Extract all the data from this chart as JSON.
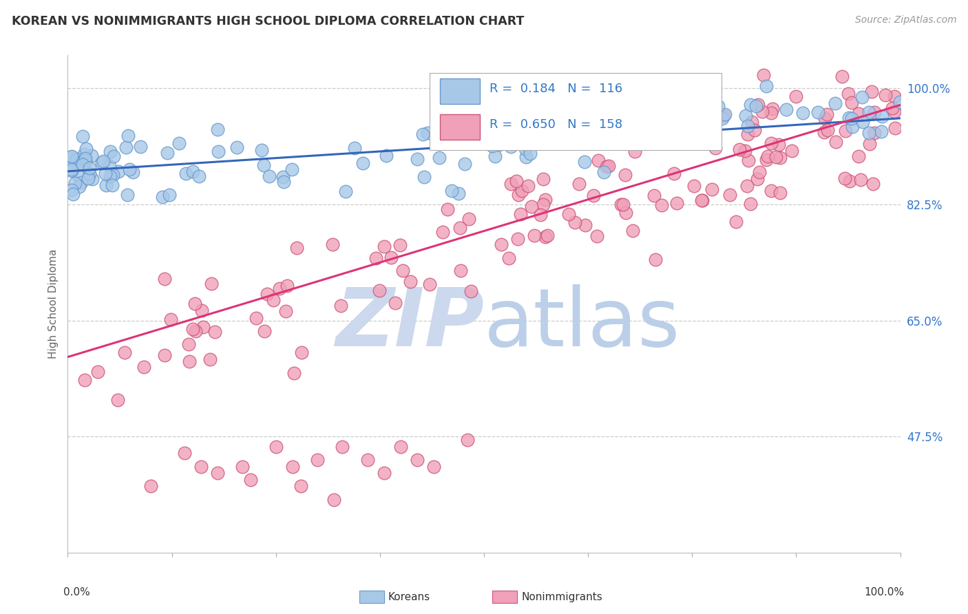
{
  "title": "KOREAN VS NONIMMIGRANTS HIGH SCHOOL DIPLOMA CORRELATION CHART",
  "source": "Source: ZipAtlas.com",
  "ylabel": "High School Diploma",
  "ytick_labels": [
    "100.0%",
    "82.5%",
    "65.0%",
    "47.5%"
  ],
  "ytick_values": [
    1.0,
    0.825,
    0.65,
    0.475
  ],
  "background_color": "#ffffff",
  "grid_color": "#cccccc",
  "title_color": "#333333",
  "axis_label_color": "#666666",
  "right_tick_color": "#3377cc",
  "watermark_zip_color": "#ccd8ed",
  "watermark_atlas_color": "#bccfe8",
  "korean_color": "#a8c8e8",
  "korean_edge_color": "#6699cc",
  "nonimmigrant_color": "#f0a0b8",
  "nonimmigrant_edge_color": "#cc5577",
  "korean_line_color": "#3366bb",
  "nonimmigrant_line_color": "#dd3377",
  "legend_r1": "R =  0.184",
  "legend_n1": "N =  116",
  "legend_r2": "R =  0.650",
  "legend_n2": "N =  158",
  "legend_label1": "Koreans",
  "legend_label2": "Nonimmigrants",
  "xmin": 0.0,
  "xmax": 1.0,
  "ymin": 0.3,
  "ymax": 1.05,
  "korean_line_x0": 0.0,
  "korean_line_y0": 0.875,
  "korean_line_x1": 1.0,
  "korean_line_y1": 0.955,
  "nonimmigrant_line_x0": 0.0,
  "nonimmigrant_line_y0": 0.595,
  "nonimmigrant_line_x1": 1.0,
  "nonimmigrant_line_y1": 0.975
}
